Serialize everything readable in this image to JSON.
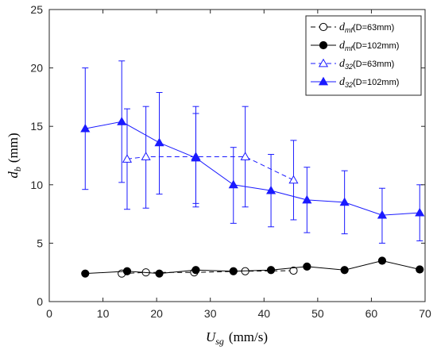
{
  "chart_data": {
    "type": "line",
    "xlabel": {
      "main": "U",
      "sub": "sg",
      "unit": "(mm/s)"
    },
    "ylabel": {
      "main": "d",
      "sub": "b",
      "unit": "(mm)"
    },
    "xlim": [
      0,
      70
    ],
    "ylim": [
      0,
      25
    ],
    "xticks": [
      0,
      10,
      20,
      30,
      40,
      50,
      60,
      70
    ],
    "yticks": [
      0,
      5,
      10,
      15,
      20,
      25
    ],
    "grid": false,
    "legend_position": "top-right",
    "series": [
      {
        "name": "dmf (D=63mm)",
        "label_main": "d",
        "label_sub": "mf",
        "label_suffix": "(D=63mm)",
        "color": "#000000",
        "line": "dashed",
        "marker": "circle-open",
        "x": [
          13.5,
          18,
          27,
          36.5,
          45.5
        ],
        "y": [
          2.4,
          2.5,
          2.5,
          2.6,
          2.65
        ]
      },
      {
        "name": "dmf (D=102mm)",
        "label_main": "d",
        "label_sub": "mf",
        "label_suffix": "(D=102mm)",
        "color": "#000000",
        "line": "solid",
        "marker": "circle-filled",
        "x": [
          6.7,
          14.5,
          20.5,
          27.3,
          34.3,
          41.3,
          48,
          55,
          62,
          69
        ],
        "y": [
          2.4,
          2.6,
          2.4,
          2.7,
          2.6,
          2.7,
          3.0,
          2.7,
          3.5,
          2.75
        ]
      },
      {
        "name": "d32 (D=63mm)",
        "label_main": "d",
        "label_sub": "32",
        "label_suffix": "(D=63mm)",
        "color": "#1a1aff",
        "line": "dashed",
        "marker": "triangle-open",
        "x": [
          14.5,
          18,
          27.3,
          36.5,
          45.5
        ],
        "y": [
          12.2,
          12.4,
          12.4,
          12.4,
          10.4
        ],
        "err_low": [
          7.9,
          8.0,
          8.1,
          8.1,
          7.0
        ],
        "err_high": [
          16.5,
          16.7,
          16.7,
          16.7,
          13.8
        ]
      },
      {
        "name": "d32 (D=102mm)",
        "label_main": "d",
        "label_sub": "32",
        "label_suffix": "(D=102mm)",
        "color": "#1a1aff",
        "line": "solid",
        "marker": "triangle-filled",
        "x": [
          6.7,
          13.5,
          20.5,
          27.3,
          34.3,
          41.3,
          48,
          55,
          62,
          69
        ],
        "y": [
          14.8,
          15.4,
          13.6,
          12.3,
          10.0,
          9.5,
          8.7,
          8.5,
          7.4,
          7.6
        ],
        "err_low": [
          9.6,
          10.2,
          9.2,
          8.4,
          6.7,
          6.4,
          5.9,
          5.8,
          5.0,
          5.2
        ],
        "err_high": [
          20.0,
          20.6,
          17.9,
          16.1,
          13.2,
          12.6,
          11.5,
          11.2,
          9.7,
          10.0
        ]
      }
    ]
  }
}
